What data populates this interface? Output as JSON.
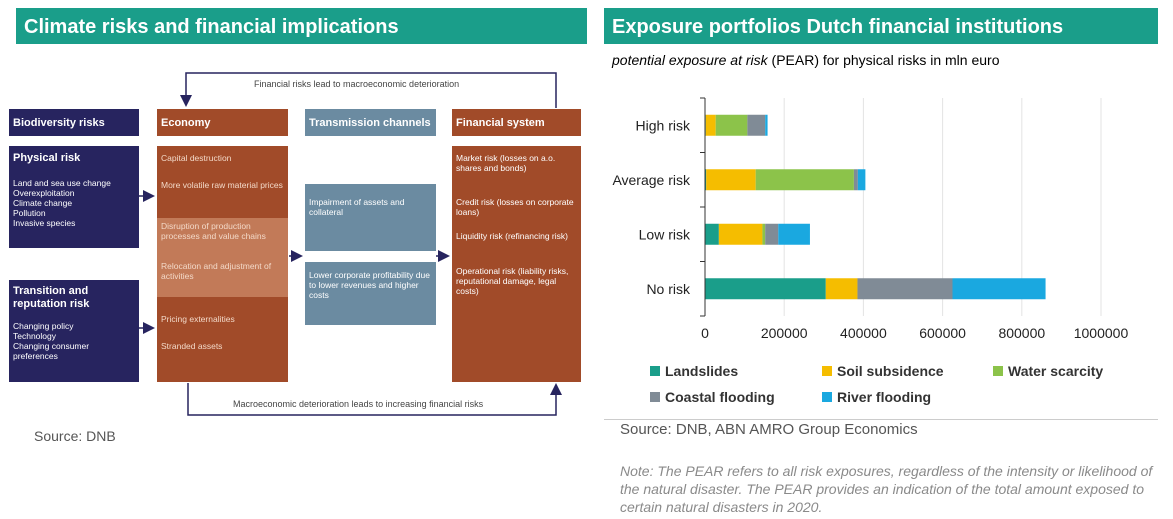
{
  "left": {
    "title": "Climate risks and financial implications",
    "top_flow_label": "Financial risks lead to macroeconomic deterioration",
    "bottom_flow_label": "Macroeconomic deterioration leads to increasing financial risks",
    "biodiversity": {
      "title": "Biodiversity risks"
    },
    "physical": {
      "title": "Physical risk",
      "items": [
        "Land and sea use change",
        "Overexploitation",
        "Climate change",
        "Pollution",
        "Invasive species"
      ]
    },
    "transition": {
      "title_line1": "Transition and",
      "title_line2": "reputation risk",
      "items": [
        "Changing policy",
        "Technology",
        "Changing consumer",
        "preferences"
      ]
    },
    "economy": {
      "title": "Economy",
      "items": [
        "Capital destruction",
        "More volatile raw material prices",
        "Disruption of production processes and value chains",
        "Relocation and adjustment of activities",
        "Pricing externalities",
        "Stranded assets"
      ]
    },
    "transmission": {
      "title": "Transmission channels",
      "items": [
        "Impairment of assets and collateral",
        "Lower corporate profitability due to lower revenues and higher costs"
      ]
    },
    "financial": {
      "title": "Financial system",
      "items": [
        "Market risk (losses on a.o. shares and bonds)",
        "Credit risk (losses on corporate loans)",
        "Liquidity risk (refinancing risk)",
        "Operational risk (liability risks, reputational damage, legal costs)"
      ]
    },
    "source": "Source: DNB"
  },
  "right": {
    "title": "Exposure portfolios Dutch financial institutions",
    "subtitle_italic": "potential exposure at risk",
    "subtitle_rest": " (PEAR) for physical risks in mln euro",
    "source": "Source: DNB, ABN AMRO Group Economics",
    "note": "Note: The PEAR refers to all risk exposures, regardless of the intensity or likelihood of the natural disaster. The PEAR provides an indication of the total amount exposed to certain natural disasters in 2020."
  },
  "chart_data": {
    "type": "bar",
    "orientation": "horizontal",
    "stacked": true,
    "categories": [
      "High risk",
      "Average risk",
      "Low risk",
      "No risk"
    ],
    "series": [
      {
        "name": "Landslides",
        "color": "#1a9e8a",
        "values": [
          2000,
          3000,
          35000,
          305000
        ]
      },
      {
        "name": "Soil subsidence",
        "color": "#f5bd00",
        "values": [
          25000,
          125000,
          110000,
          80000
        ]
      },
      {
        "name": "Water scarcity",
        "color": "#8cc34a",
        "values": [
          80000,
          248000,
          7000,
          0
        ]
      },
      {
        "name": "Coastal flooding",
        "color": "#808b96",
        "values": [
          45000,
          10000,
          33000,
          240000
        ]
      },
      {
        "name": "River flooding",
        "color": "#1aa8e0",
        "values": [
          6000,
          19000,
          80000,
          235000
        ]
      }
    ],
    "xlim": [
      0,
      1000000
    ],
    "ticks": [
      0,
      200000,
      400000,
      600000,
      800000,
      1000000
    ],
    "tick_labels": [
      "0",
      "200000",
      "400000",
      "600000",
      "800000",
      "1000000"
    ],
    "grid": "vertical",
    "legend": "bottom"
  }
}
